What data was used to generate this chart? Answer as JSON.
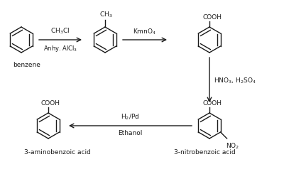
{
  "bg_color": "#ffffff",
  "fig_width": 4.0,
  "fig_height": 2.53,
  "dpi": 100,
  "col": "#1a1a1a",
  "step1_reagent": "CH$_3$Cl",
  "step1_reagent2": "Anhy. AlCl$_3$",
  "step2_reagent": "KmnO$_4$",
  "step3_reagent": "HNO$_3$, H$_2$SO$_4$",
  "step4_reagent1": "H$_2$/Pd",
  "step4_reagent2": "Ethanol",
  "label_benzene": "benzene",
  "label_product1": "3-aminobenzoic acid",
  "label_product2": "3-nitrobenzoic acid",
  "fs": 6.5,
  "fs_label": 6.5,
  "lw": 1.0,
  "bx1": 30,
  "by1": 57,
  "bx2": 148,
  "by2": 57,
  "bx3": 295,
  "by3": 57,
  "bx4": 295,
  "by4": 178,
  "bx5": 68,
  "by5": 178,
  "r": 18
}
